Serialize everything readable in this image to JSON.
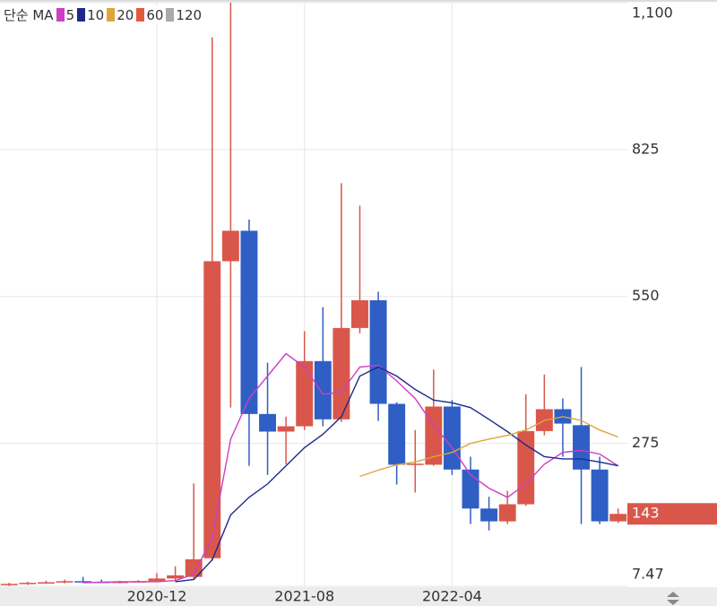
{
  "chart_data": {
    "type": "candlestick",
    "legend_title": "단순 MA",
    "categories": [
      null,
      null,
      null,
      null,
      null,
      null,
      null,
      null,
      "2020-12",
      null,
      null,
      null,
      null,
      null,
      null,
      null,
      "2021-08",
      null,
      null,
      null,
      null,
      null,
      null,
      null,
      "2022-04",
      null,
      null,
      null,
      null,
      null,
      null,
      null,
      null,
      null
    ],
    "open": [
      10,
      12,
      14,
      15,
      17,
      16,
      15,
      16,
      17,
      22,
      25,
      60,
      616,
      673,
      330,
      297,
      307,
      429,
      320,
      491,
      543,
      349,
      235,
      235,
      344,
      226,
      153,
      129,
      161,
      298,
      339,
      309,
      226,
      129
    ],
    "high": [
      14,
      16,
      18,
      20,
      25,
      20,
      18,
      19,
      32,
      45,
      200,
      1035,
      1100,
      694,
      426,
      325,
      485,
      530,
      762,
      720,
      559,
      352,
      300,
      413,
      356,
      250,
      175,
      186,
      367,
      404,
      359,
      418,
      250,
      153
    ],
    "low": [
      8,
      10,
      12,
      13,
      15,
      14,
      13,
      14,
      15,
      18,
      20,
      55,
      342,
      233,
      216,
      236,
      300,
      307,
      315,
      481,
      317,
      198,
      183,
      233,
      216,
      124,
      112,
      124,
      158,
      290,
      250,
      124,
      124,
      126
    ],
    "close": [
      12,
      14,
      15,
      17,
      16,
      15,
      16,
      17,
      22,
      28,
      58,
      616,
      673,
      330,
      297,
      307,
      429,
      320,
      491,
      543,
      349,
      235,
      237,
      344,
      226,
      153,
      129,
      161,
      298,
      339,
      312,
      226,
      129,
      143
    ],
    "up_color": "#d9574a",
    "down_color": "#2f5fc4",
    "series": [
      {
        "name": "5",
        "color": "#cc3fc4",
        "values": [
          null,
          null,
          null,
          null,
          14,
          15,
          16,
          16,
          16,
          18,
          30,
          99,
          283,
          359,
          401,
          443,
          418,
          367,
          371,
          418,
          421,
          392,
          359,
          309,
          267,
          216,
          191,
          174,
          199,
          236,
          258,
          262,
          255,
          233
        ]
      },
      {
        "name": "10",
        "color": "#1c2a8f",
        "values": [
          null,
          null,
          null,
          null,
          null,
          null,
          null,
          null,
          null,
          16,
          20,
          57,
          141,
          174,
          199,
          233,
          267,
          292,
          325,
          401,
          418,
          401,
          376,
          356,
          351,
          342,
          320,
          297,
          272,
          250,
          246,
          246,
          240,
          233
        ]
      },
      {
        "name": "20",
        "color": "#e0a53a",
        "values": [
          null,
          null,
          null,
          null,
          null,
          null,
          null,
          null,
          null,
          null,
          null,
          null,
          null,
          null,
          null,
          null,
          null,
          null,
          null,
          213,
          225,
          235,
          240,
          250,
          258,
          275,
          283,
          290,
          300,
          318,
          325,
          318,
          300,
          287
        ]
      },
      {
        "name": "60",
        "color": "#e05a3c",
        "values": [
          null,
          null,
          null,
          null,
          null,
          null,
          null,
          null,
          null,
          null,
          null,
          null,
          null,
          null,
          null,
          null,
          null,
          null,
          null,
          null,
          null,
          null,
          null,
          null,
          null,
          null,
          null,
          null,
          null,
          null,
          null,
          null,
          null,
          null
        ]
      },
      {
        "name": "120",
        "color": "#aaaaaa",
        "values": [
          null,
          null,
          null,
          null,
          null,
          null,
          null,
          null,
          null,
          null,
          null,
          null,
          null,
          null,
          null,
          null,
          null,
          null,
          null,
          null,
          null,
          null,
          null,
          null,
          null,
          null,
          null,
          null,
          null,
          null,
          null,
          null,
          null,
          null
        ]
      }
    ],
    "last_value": 143,
    "ylim": [
      7.47,
      1100
    ],
    "yticks": [
      7.47,
      275,
      550,
      825,
      {
        "value": 1100,
        "label": "1,100"
      }
    ],
    "grid": true
  }
}
